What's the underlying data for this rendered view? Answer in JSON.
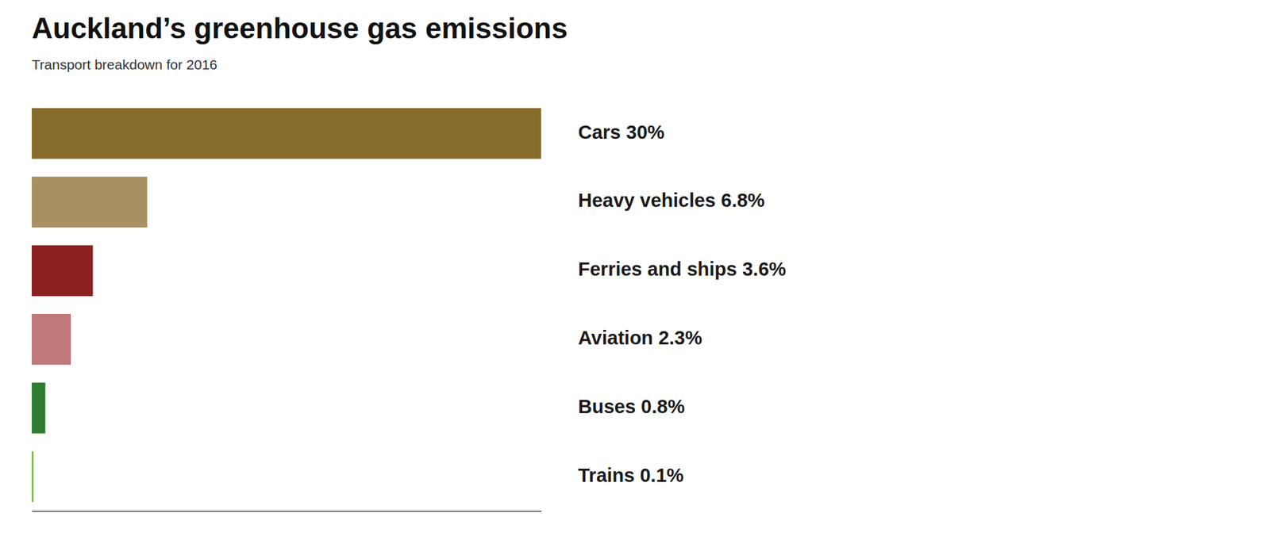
{
  "chart_data": {
    "type": "bar",
    "orientation": "horizontal",
    "title": "Auckland’s greenhouse gas emissions",
    "subtitle": "Transport breakdown for 2016",
    "categories": [
      "Cars",
      "Heavy vehicles",
      "Ferries and ships",
      "Aviation",
      "Buses",
      "Trains"
    ],
    "values": [
      30,
      6.8,
      3.6,
      2.3,
      0.8,
      0.1
    ],
    "value_labels": [
      "Cars  30%",
      "Heavy vehicles 6.8%",
      "Ferries and ships 3.6%",
      "Aviation 2.3%",
      "Buses 0.8%",
      "Trains 0.1%"
    ],
    "colors": [
      "#876B2A",
      "#A89060",
      "#8B2020",
      "#C07878",
      "#2E7D32",
      "#7CB342"
    ],
    "xlim": [
      0,
      30
    ],
    "data_labels": true,
    "tick_labels": false,
    "grid": false
  }
}
